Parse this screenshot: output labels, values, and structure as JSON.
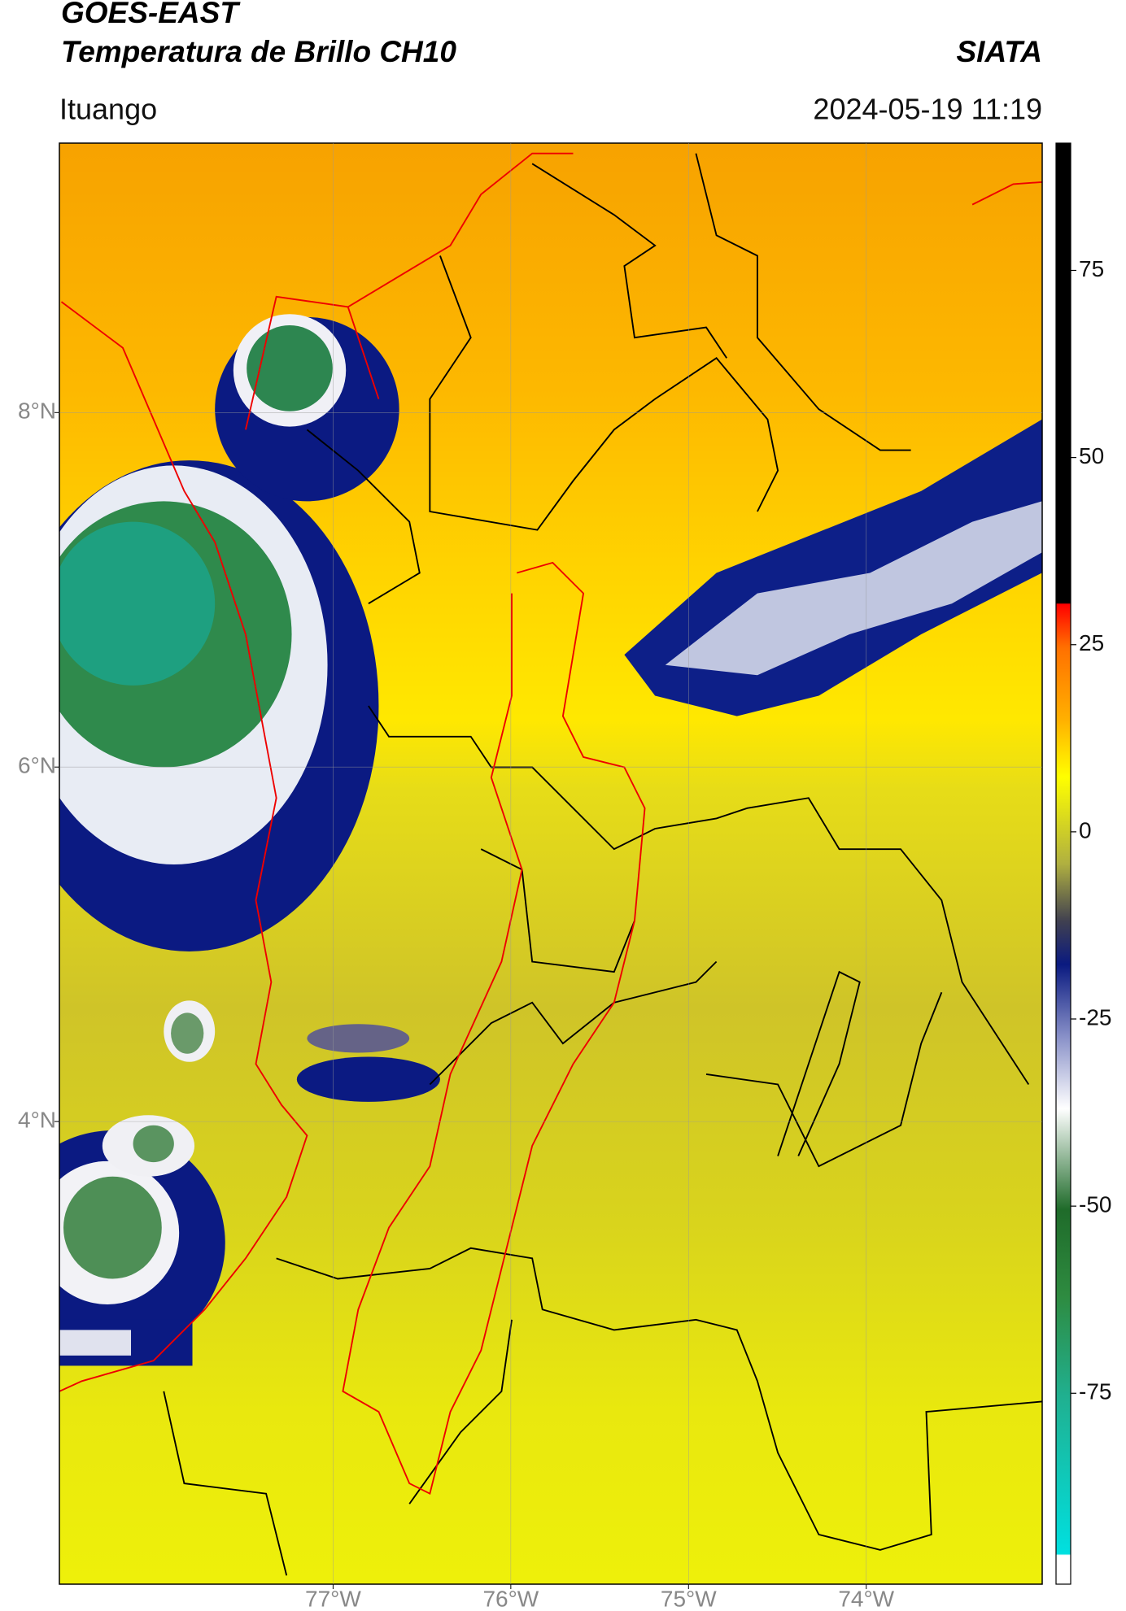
{
  "header": {
    "title": "GOES-EAST",
    "subtitle": "Temperatura de Brillo CH10",
    "brand": "SIATA",
    "location": "Ituango",
    "datetime": "2024-05-19 11:19"
  },
  "map": {
    "xlim": [
      -78.54,
      -73.01
    ],
    "ylim": [
      1.39,
      9.52
    ],
    "xticks": [
      {
        "value": -77,
        "label": "77°W"
      },
      {
        "value": -76,
        "label": "76°W"
      },
      {
        "value": -75,
        "label": "75°W"
      },
      {
        "value": -74,
        "label": "74°W"
      }
    ],
    "yticks": [
      {
        "value": 4,
        "label": "4°N"
      },
      {
        "value": 6,
        "label": "6°N"
      },
      {
        "value": 8,
        "label": "8°N"
      }
    ],
    "grid": true
  },
  "colorbar": {
    "lim": [
      -100.5,
      92
    ],
    "ticks": [
      -75,
      -50,
      -25,
      0,
      25,
      50,
      75
    ]
  }
}
